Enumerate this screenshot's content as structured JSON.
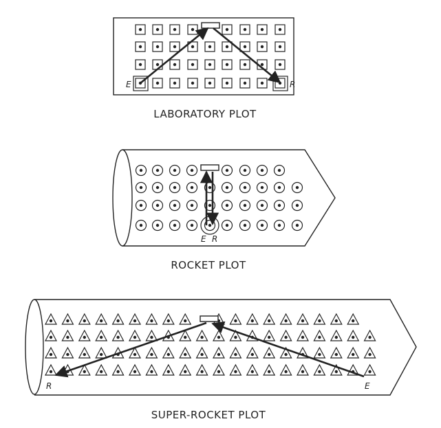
{
  "colors": {
    "ink": "#222222",
    "background": "#ffffff"
  },
  "plots": [
    {
      "id": "laboratory",
      "caption": "LABORATORY PLOT",
      "marker": "square",
      "emit_label": "E",
      "receive_label": "R"
    },
    {
      "id": "rocket",
      "caption": "ROCKET PLOT",
      "marker": "circle",
      "emit_label": "E",
      "receive_label": "R"
    },
    {
      "id": "super-rocket",
      "caption": "SUPER-ROCKET PLOT",
      "marker": "triangle",
      "emit_label": "E",
      "receive_label": "R"
    }
  ]
}
